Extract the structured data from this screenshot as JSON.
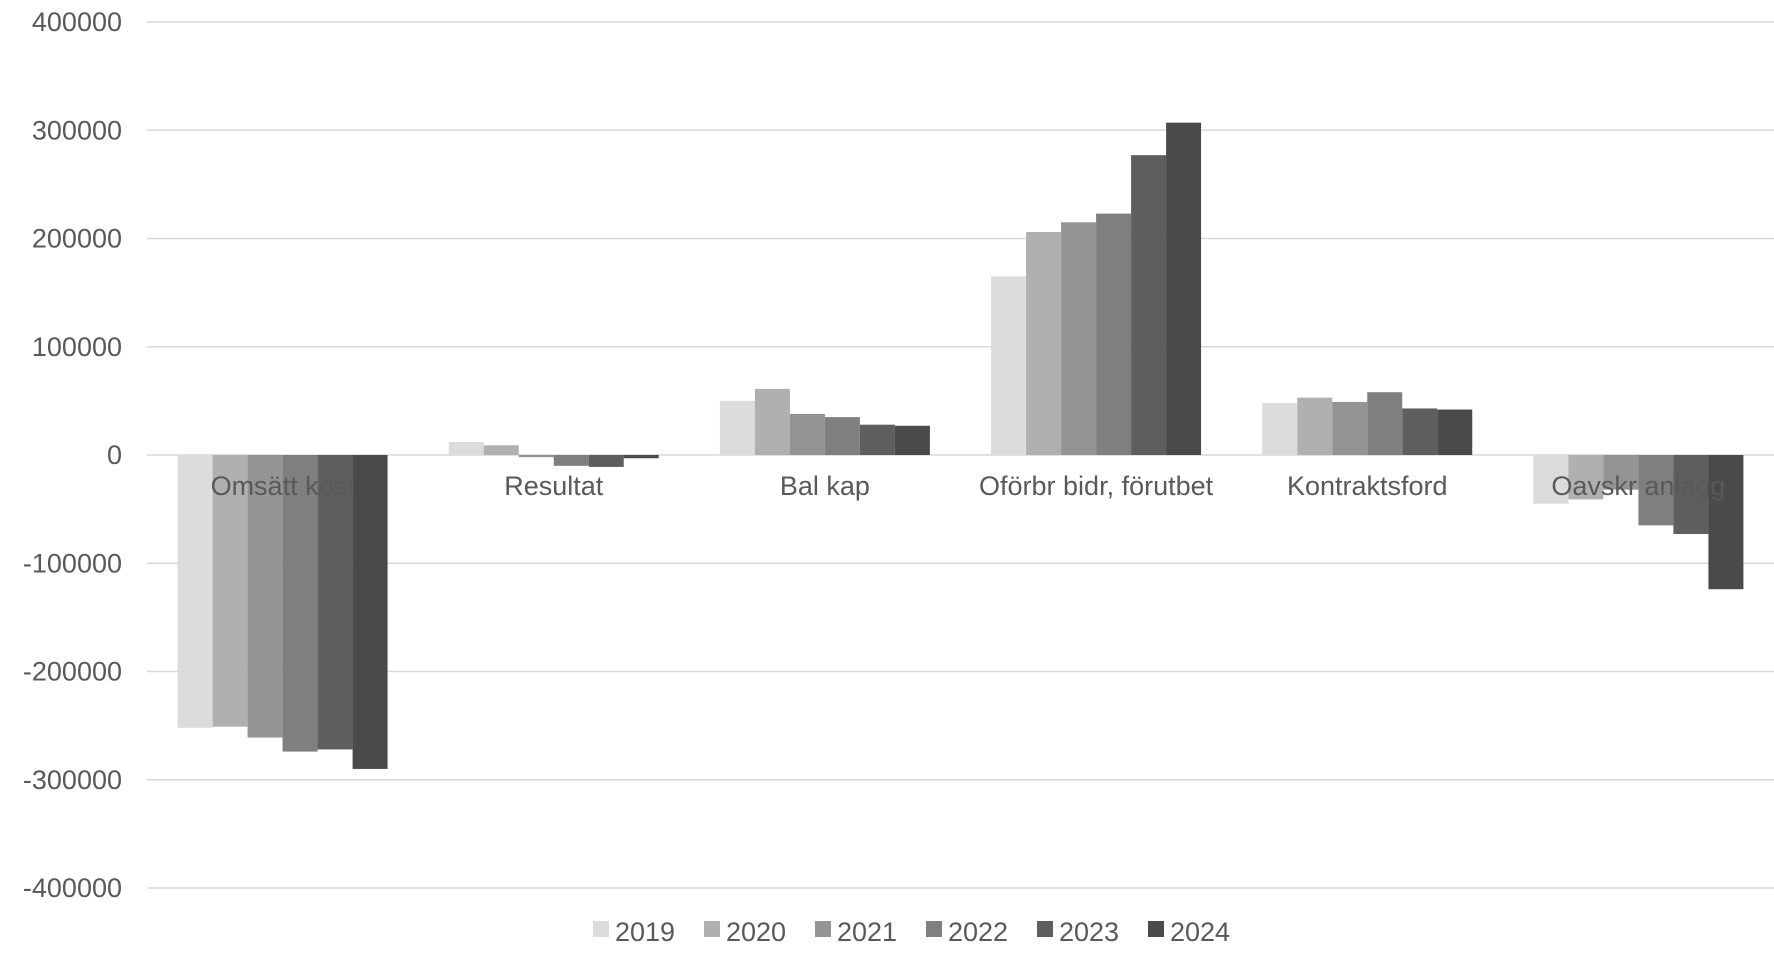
{
  "chart_data": {
    "type": "bar",
    "title": "",
    "xlabel": "",
    "ylabel": "",
    "categories": [
      "Omsätt kost",
      "Resultat",
      "Bal kap",
      "Oförbr bidr, förutbet",
      "Kontraktsford",
      "Oavskr anlägg"
    ],
    "ylim": [
      -400000,
      400000
    ],
    "yticks": [
      400000,
      300000,
      200000,
      100000,
      0,
      -100000,
      -200000,
      -300000,
      -400000
    ],
    "ytick_labels": [
      "400000",
      "300000",
      "200000",
      "100000",
      "0",
      "-100000",
      "-200000",
      "-300000",
      "-400000"
    ],
    "grid": true,
    "legend_position": "bottom",
    "series": [
      {
        "name": "2019",
        "color": "#dcdcdc",
        "values": [
          -252000,
          12000,
          50000,
          165000,
          48000,
          -45000
        ]
      },
      {
        "name": "2020",
        "color": "#b0b0b0",
        "values": [
          -251000,
          9000,
          61000,
          206000,
          53000,
          -41000
        ]
      },
      {
        "name": "2021",
        "color": "#949494",
        "values": [
          -261000,
          -2000,
          38000,
          215000,
          49000,
          -32000
        ]
      },
      {
        "name": "2022",
        "color": "#7f7f7f",
        "values": [
          -274000,
          -10000,
          35000,
          223000,
          58000,
          -65000
        ]
      },
      {
        "name": "2023",
        "color": "#5e5e5e",
        "values": [
          -272000,
          -11000,
          28000,
          277000,
          43000,
          -73000
        ]
      },
      {
        "name": "2024",
        "color": "#4a4a4a",
        "values": [
          -290000,
          -3000,
          27000,
          307000,
          42000,
          -124000
        ]
      }
    ]
  }
}
